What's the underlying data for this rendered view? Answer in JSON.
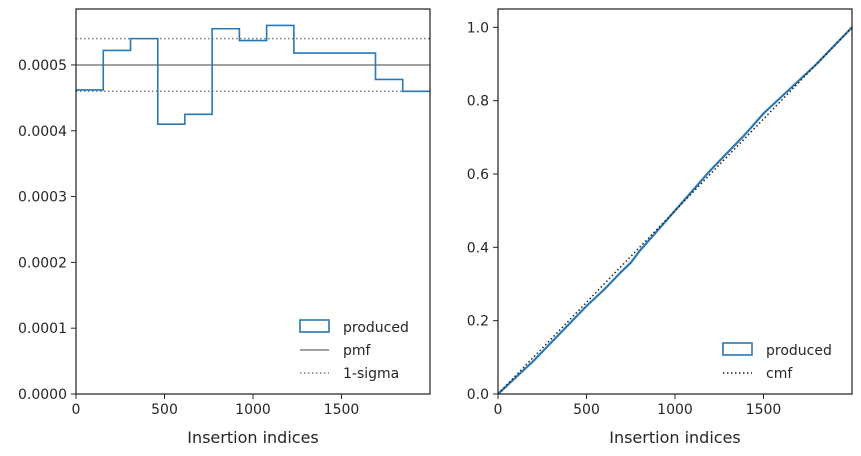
{
  "chart_data": [
    {
      "type": "histogram",
      "xlabel": "Insertion indices",
      "ylabel": "",
      "xlim": [
        0,
        2000
      ],
      "ylim": [
        0,
        0.000585
      ],
      "xticks": [
        0,
        500,
        1000,
        1500
      ],
      "xtick_labels": [
        "0",
        "500",
        "1000",
        "1500"
      ],
      "yticks": [
        0,
        0.0001,
        0.0002,
        0.0003,
        0.0004,
        0.0005
      ],
      "ytick_labels": [
        "0.0000",
        "0.0001",
        "0.0002",
        "0.0003",
        "0.0004",
        "0.0005"
      ],
      "bin_edges": [
        0,
        154,
        308,
        462,
        615,
        769,
        923,
        1077,
        1231,
        1385,
        1538,
        1692,
        1846,
        2000
      ],
      "series": [
        {
          "name": "produced",
          "style": "step",
          "values": [
            0.000462,
            0.000522,
            0.00054,
            0.00041,
            0.000425,
            0.000555,
            0.000537,
            0.00056,
            0.000518,
            0.000518,
            0.000518,
            0.000478,
            0.00046
          ]
        }
      ],
      "reference_lines": [
        {
          "name": "pmf",
          "y": 0.0005,
          "style": "solid"
        },
        {
          "name": "1-sigma",
          "y": [
            0.00046,
            0.00054
          ],
          "style": "dotted"
        }
      ],
      "legend": [
        "produced",
        "pmf",
        "1-sigma"
      ],
      "legend_position": "lower-right",
      "grid": false
    },
    {
      "type": "line",
      "xlabel": "Insertion indices",
      "ylabel": "",
      "xlim": [
        0,
        2000
      ],
      "ylim": [
        0,
        1.05
      ],
      "xticks": [
        0,
        500,
        1000,
        1500
      ],
      "xtick_labels": [
        "0",
        "500",
        "1000",
        "1500"
      ],
      "yticks": [
        0,
        0.2,
        0.4,
        0.6,
        0.8,
        1.0
      ],
      "ytick_labels": [
        "0.0",
        "0.2",
        "0.4",
        "0.6",
        "0.8",
        "1.0"
      ],
      "series": [
        {
          "name": "produced",
          "style": "step",
          "x": [
            0,
            100,
            200,
            300,
            400,
            500,
            600,
            700,
            750,
            800,
            900,
            1000,
            1100,
            1200,
            1300,
            1400,
            1500,
            1600,
            1700,
            1800,
            1900,
            2000
          ],
          "y": [
            0,
            0.045,
            0.09,
            0.14,
            0.19,
            0.24,
            0.285,
            0.335,
            0.358,
            0.39,
            0.445,
            0.5,
            0.555,
            0.61,
            0.66,
            0.71,
            0.765,
            0.81,
            0.855,
            0.9,
            0.95,
            1.0
          ]
        },
        {
          "name": "cmf",
          "style": "dotted",
          "x": [
            0,
            2000
          ],
          "y": [
            0,
            1.0
          ]
        }
      ],
      "legend": [
        "produced",
        "cmf"
      ],
      "legend_position": "lower-right",
      "grid": false
    }
  ],
  "colors": {
    "produced": "#2878b5",
    "pmf": "#808080",
    "sigma": "#808080",
    "cmf": "#222222",
    "axes": "#262626"
  }
}
